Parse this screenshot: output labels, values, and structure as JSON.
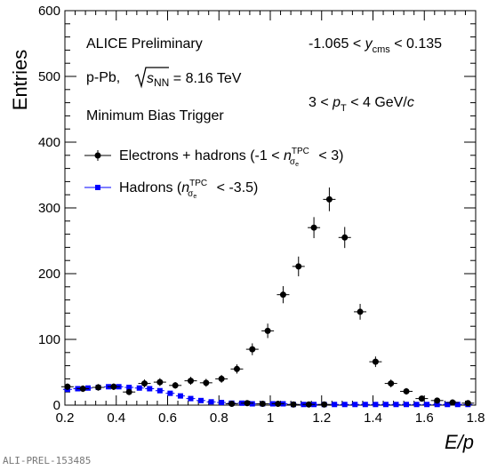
{
  "chart_data": {
    "type": "scatter",
    "ylabel": "Entries",
    "xlabel": "E/p",
    "xlim": [
      0.2,
      1.8
    ],
    "ylim": [
      0,
      600
    ],
    "x_ticks": [
      "0.2",
      "0.4",
      "0.6",
      "0.8",
      "1",
      "1.2",
      "1.4",
      "1.6",
      "1.8"
    ],
    "y_ticks": [
      "0",
      "100",
      "200",
      "300",
      "400",
      "500",
      "600"
    ],
    "annotations": {
      "experiment": "ALICE Preliminary",
      "system_prefix": "p-Pb,",
      "system_s": "s",
      "system_sub": "NN",
      "system_value": " = 8.16 TeV",
      "trigger": "Minimum Bias Trigger",
      "rapidity": {
        "pre": "-1.065 < ",
        "var": "y",
        "sub": "cms",
        "post": " < 0.135"
      },
      "pt": {
        "pre": "3 < ",
        "var": "p",
        "sub": "T",
        "post": " < 4 GeV/",
        "unit": "c"
      }
    },
    "legend": [
      {
        "pre": "Electrons + hadrons (-1 < ",
        "var": "n",
        "sup": "TPC",
        "sub": "σ",
        "subsub": "e",
        "post": " < 3)"
      },
      {
        "pre": "Hadrons (",
        "var": "n",
        "sup": "TPC",
        "sub": "σ",
        "subsub": "e",
        "post": " < -3.5)"
      }
    ],
    "series": [
      {
        "name": "Electrons + hadrons",
        "color": "#000000",
        "marker": "circle",
        "x": [
          0.21,
          0.27,
          0.33,
          0.39,
          0.45,
          0.51,
          0.57,
          0.63,
          0.69,
          0.75,
          0.81,
          0.87,
          0.93,
          0.99,
          1.05,
          1.11,
          1.17,
          1.23,
          1.29,
          1.35,
          1.41,
          1.47,
          1.53,
          1.59,
          1.65,
          1.71,
          1.77,
          0.85,
          0.91,
          0.97,
          1.03,
          1.09,
          1.15,
          1.21
        ],
        "y": [
          28,
          25,
          27,
          28,
          20,
          33,
          35,
          30,
          37,
          34,
          40,
          55,
          85,
          113,
          168,
          211,
          270,
          313,
          255,
          142,
          66,
          33,
          21,
          10,
          7,
          4,
          3,
          2,
          3,
          2,
          2,
          1,
          1,
          1
        ],
        "err": [
          5,
          5,
          5,
          5,
          4,
          6,
          6,
          5,
          6,
          6,
          6,
          7,
          9,
          11,
          13,
          15,
          16,
          18,
          16,
          12,
          8,
          6,
          5,
          3,
          3,
          2,
          2,
          2,
          2,
          2,
          2,
          1,
          1,
          1
        ]
      },
      {
        "name": "Hadrons",
        "color": "#0000ff",
        "marker": "square",
        "x": [
          0.21,
          0.25,
          0.29,
          0.33,
          0.37,
          0.41,
          0.45,
          0.49,
          0.53,
          0.57,
          0.61,
          0.65,
          0.69,
          0.73,
          0.77,
          0.81,
          0.85,
          0.89,
          0.93,
          0.97,
          1.01,
          1.05,
          1.09,
          1.13,
          1.17,
          1.21,
          1.25,
          1.29,
          1.33,
          1.37,
          1.41,
          1.45,
          1.49,
          1.53,
          1.57,
          1.61,
          1.65,
          1.69,
          1.73,
          1.77
        ],
        "y": [
          24,
          25,
          26,
          27,
          28,
          28,
          27,
          26,
          25,
          22,
          18,
          14,
          10,
          7,
          5,
          4,
          3,
          3,
          2,
          2,
          2,
          2,
          1,
          1,
          1,
          1,
          1,
          1,
          1,
          1,
          1,
          1,
          1,
          1,
          1,
          1,
          1,
          1,
          1,
          1
        ]
      }
    ]
  },
  "watermark": "ALI-PREL-153485"
}
